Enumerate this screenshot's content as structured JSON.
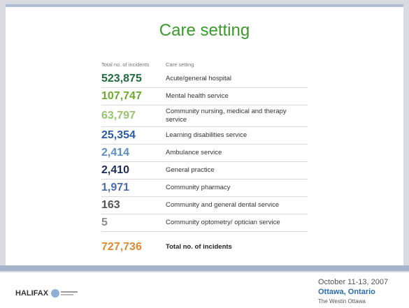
{
  "header": {
    "title": "Care setting"
  },
  "table": {
    "columns": [
      "Total no. of incidents",
      "Care setting"
    ],
    "rows": [
      {
        "count": "523,875",
        "setting": "Acute/general hospital",
        "color": "#1f6b3c"
      },
      {
        "count": "107,747",
        "setting": "Mental health service",
        "color": "#6aab2e"
      },
      {
        "count": "63,797",
        "setting": "Community nursing, medical and therapy service",
        "color": "#97c46f"
      },
      {
        "count": "25,354",
        "setting": "Learning disabilities service",
        "color": "#2b5ca6"
      },
      {
        "count": "2,414",
        "setting": "Ambulance service",
        "color": "#5c8fc9"
      },
      {
        "count": "2,410",
        "setting": "General practice",
        "color": "#1e2d5c"
      },
      {
        "count": "1,971",
        "setting": "Community pharmacy",
        "color": "#4a6db0"
      },
      {
        "count": "163",
        "setting": "Community and general dental service",
        "color": "#555555"
      },
      {
        "count": "5",
        "setting": "Community optometry/ optician service",
        "color": "#8a8a8a"
      },
      {
        "count": "727,736",
        "setting": "Total no. of incidents",
        "color": "#e08a2e"
      }
    ]
  },
  "footer": {
    "logo": "HALIFAX",
    "dates": "October 11-13, 2007",
    "city": "Ottawa, Ontario",
    "venue": "The Westin Ottawa"
  }
}
